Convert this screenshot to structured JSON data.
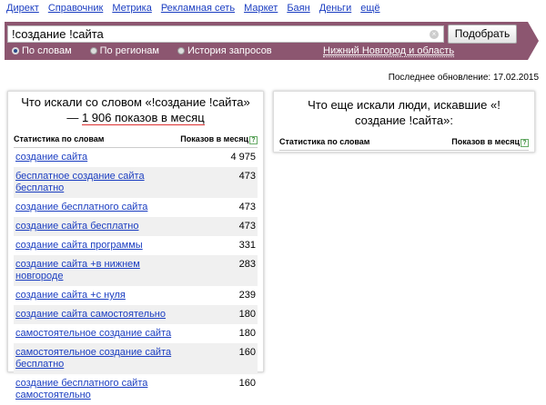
{
  "nav": [
    "Директ",
    "Справочник",
    "Метрика",
    "Рекламная сеть",
    "Маркет",
    "Баян",
    "Деньги",
    "ещё"
  ],
  "search": {
    "value": "!создание !сайта",
    "button": "Подобрать",
    "region": "Нижний Новгород и область",
    "modes": [
      {
        "label": "По словам",
        "selected": true
      },
      {
        "label": "По регионам",
        "selected": false
      },
      {
        "label": "История запросов",
        "selected": false
      }
    ]
  },
  "colors": {
    "bar": "#8c5670",
    "link": "#1a3dc1"
  },
  "update": "Последнее обновление: 17.02.2015",
  "left": {
    "title_a": "Что искали со словом «!создание !сайта» — ",
    "title_b": "1 906 показов в месяц",
    "col1": "Статистика по словам",
    "col2": "Показов в месяц",
    "help": "?",
    "rows": [
      {
        "q": "создание сайта",
        "n": "4 975"
      },
      {
        "q": "бесплатное создание сайта бесплатно",
        "n": "473"
      },
      {
        "q": "создание бесплатного сайта",
        "n": "473"
      },
      {
        "q": "создание сайта бесплатно",
        "n": "473"
      },
      {
        "q": "создание сайта программы",
        "n": "331"
      },
      {
        "q": "создание сайта +в нижнем новгороде",
        "n": "283"
      },
      {
        "q": "создание сайта +с нуля",
        "n": "239"
      },
      {
        "q": "создание сайта самостоятельно",
        "n": "180"
      },
      {
        "q": "самостоятельное создание сайта",
        "n": "180"
      },
      {
        "q": "самостоятельное создание сайта бесплатно",
        "n": "160"
      },
      {
        "q": "создание бесплатного сайта самостоятельно",
        "n": "160"
      }
    ]
  },
  "right": {
    "title": "Что еще искали люди, искавшие «!создание !сайта»:",
    "col1": "Статистика по словам",
    "col2": "Показов в месяц",
    "help": "?"
  }
}
